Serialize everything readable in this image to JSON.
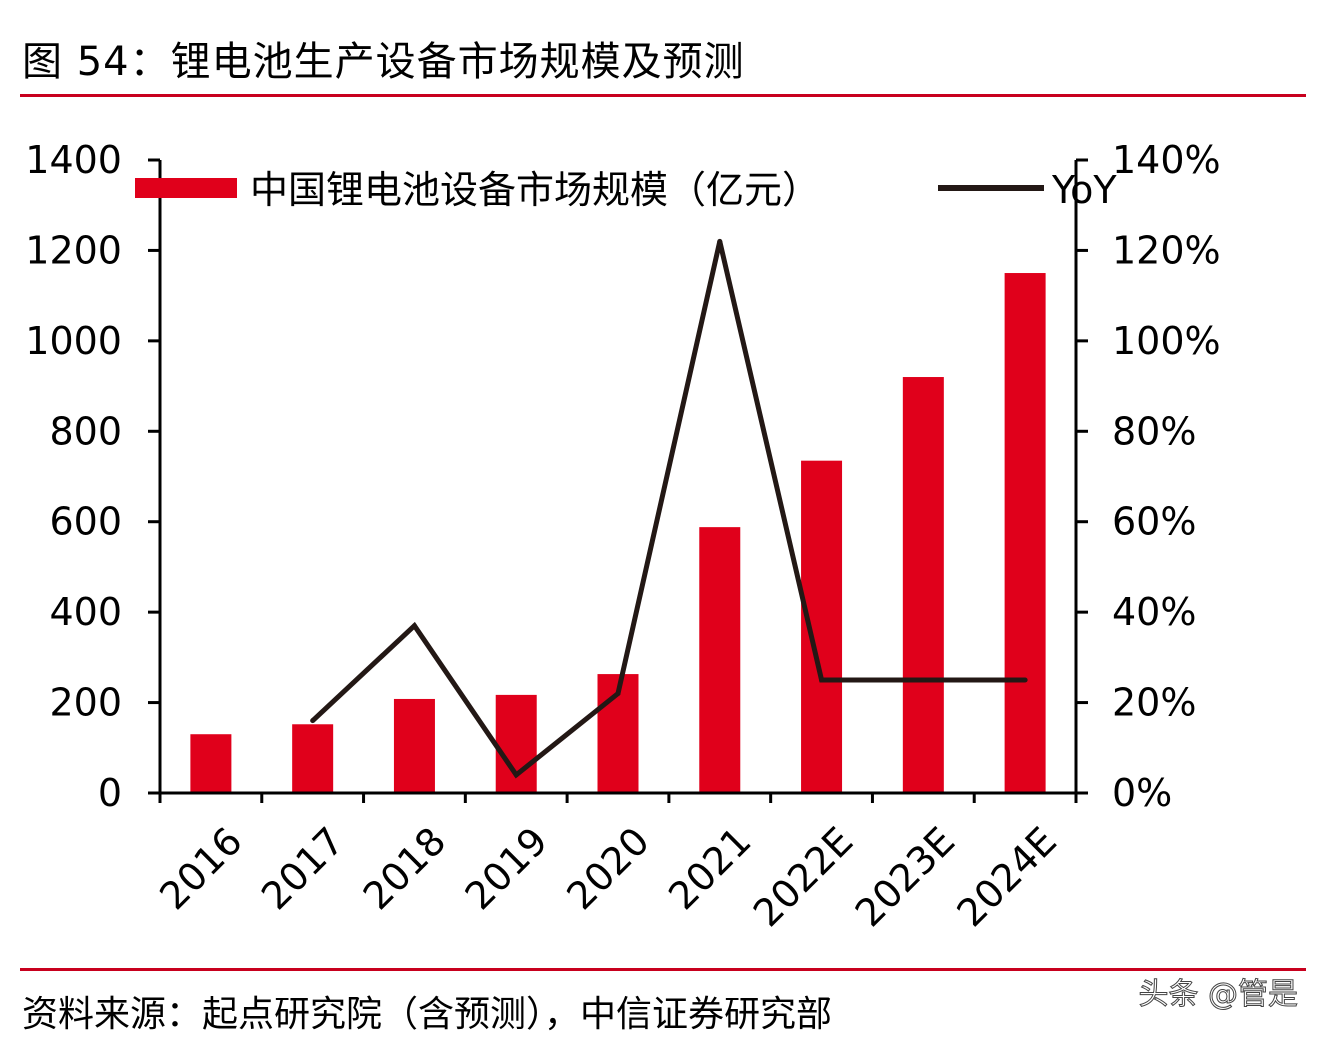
{
  "header": {
    "title": "图 54：锂电池生产设备市场规模及预测"
  },
  "footer": {
    "source": "资料来源：起点研究院（含预测），中信证券研究部",
    "watermark": "头条 @管是"
  },
  "colors": {
    "bar": "#e0001b",
    "line": "#231815",
    "rule": "#c8001e"
  },
  "chart_data": {
    "type": "bar",
    "title": "",
    "categories": [
      "2016",
      "2017",
      "2018",
      "2019",
      "2020",
      "2021",
      "2022E",
      "2023E",
      "2024E"
    ],
    "series": [
      {
        "name": "中国锂电池设备市场规模（亿元）",
        "type": "bar",
        "axis": "left",
        "values": [
          130,
          152,
          208,
          217,
          263,
          588,
          735,
          920,
          1150
        ]
      },
      {
        "name": "YoY",
        "type": "line",
        "axis": "right",
        "values": [
          null,
          16,
          37,
          4,
          22,
          122,
          25,
          25,
          25
        ]
      }
    ],
    "left_axis": {
      "min": 0,
      "max": 1400,
      "ticks": [
        "0",
        "200",
        "400",
        "600",
        "800",
        "1000",
        "1200",
        "1400"
      ]
    },
    "right_axis": {
      "min": 0,
      "max": 140,
      "unit": "%",
      "ticks": [
        "0%",
        "20%",
        "40%",
        "60%",
        "80%",
        "100%",
        "120%",
        "140%"
      ]
    },
    "legend_position": "top",
    "grid": false
  }
}
